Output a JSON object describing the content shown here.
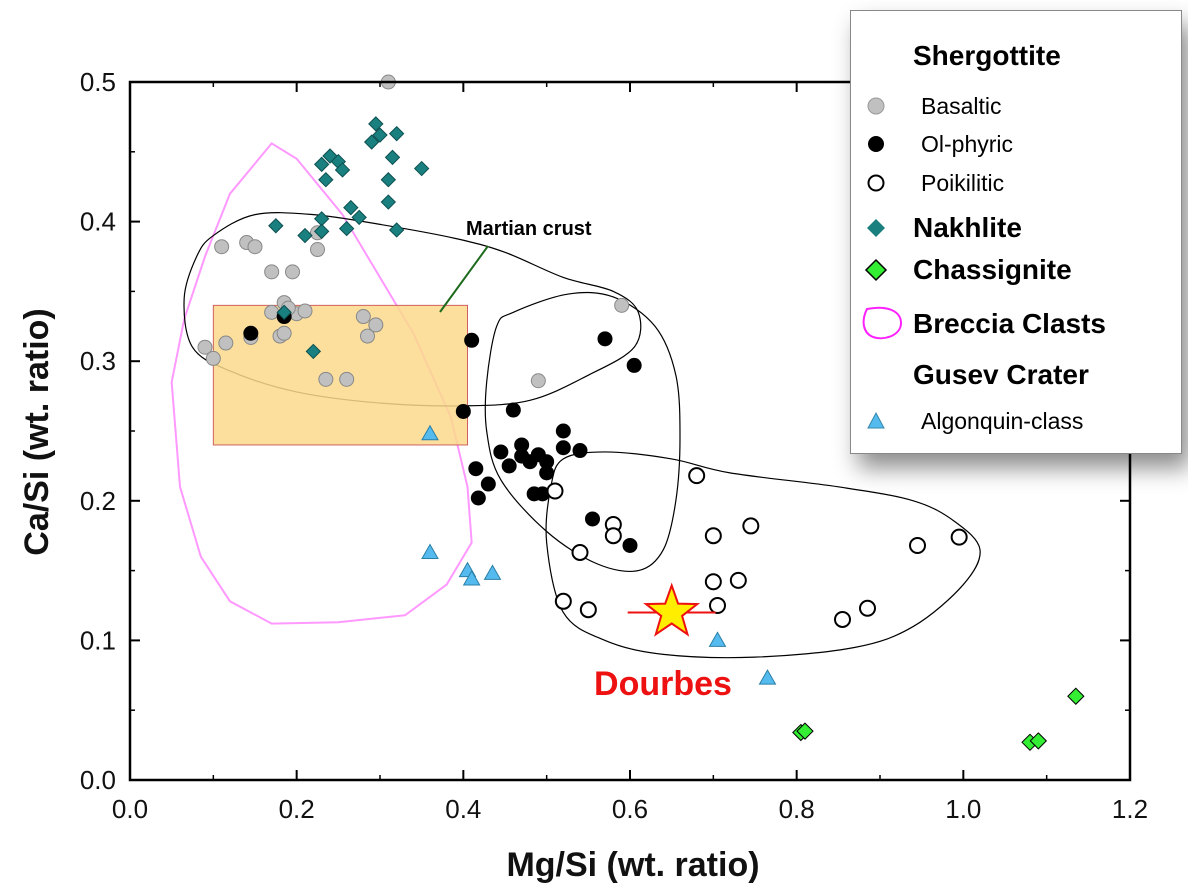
{
  "chart_data": {
    "type": "scatter",
    "xlabel": "Mg/Si (wt. ratio)",
    "ylabel": "Ca/Si (wt. ratio)",
    "xlim": [
      0.0,
      1.2
    ],
    "ylim": [
      0.0,
      0.5
    ],
    "x_ticks": [
      "0.0",
      "0.2",
      "0.4",
      "0.6",
      "0.8",
      "1.0",
      "1.2"
    ],
    "y_ticks": [
      "0.0",
      "0.1",
      "0.2",
      "0.3",
      "0.4",
      "0.5"
    ],
    "grid": false,
    "legend_position": "top-right",
    "annotations": {
      "crust_label": "Martian crust",
      "dourbes_label": "Dourbes",
      "dourbes_point": [
        0.65,
        0.12
      ],
      "crust_box": {
        "x": [
          0.1,
          0.405
        ],
        "y": [
          0.24,
          0.34
        ]
      }
    },
    "legend": {
      "group1": "Shergottite",
      "basaltic": "Basaltic",
      "olphyric": "Ol-phyric",
      "poikilitic": "Poikilitic",
      "nakhlite": "Nakhlite",
      "chassignite": "Chassignite",
      "breccia": "Breccia Clasts",
      "group2": "Gusev Crater",
      "algonquin": "Algonquin-class"
    },
    "series": [
      {
        "name": "Basaltic",
        "color": "#c0c0c0",
        "marker": "circle-filled",
        "points": [
          [
            0.31,
            0.5
          ],
          [
            0.11,
            0.382
          ],
          [
            0.14,
            0.385
          ],
          [
            0.15,
            0.382
          ],
          [
            0.17,
            0.364
          ],
          [
            0.195,
            0.364
          ],
          [
            0.225,
            0.38
          ],
          [
            0.225,
            0.392
          ],
          [
            0.09,
            0.31
          ],
          [
            0.1,
            0.302
          ],
          [
            0.115,
            0.313
          ],
          [
            0.145,
            0.317
          ],
          [
            0.17,
            0.335
          ],
          [
            0.185,
            0.342
          ],
          [
            0.18,
            0.318
          ],
          [
            0.185,
            0.32
          ],
          [
            0.2,
            0.334
          ],
          [
            0.21,
            0.336
          ],
          [
            0.235,
            0.287
          ],
          [
            0.26,
            0.287
          ],
          [
            0.28,
            0.332
          ],
          [
            0.285,
            0.318
          ],
          [
            0.295,
            0.326
          ],
          [
            0.49,
            0.286
          ],
          [
            0.59,
            0.34
          ],
          [
            0.185,
            0.333
          ],
          [
            0.19,
            0.338
          ]
        ]
      },
      {
        "name": "Ol-phyric",
        "color": "#000000",
        "marker": "circle-filled",
        "points": [
          [
            0.145,
            0.32
          ],
          [
            0.185,
            0.332
          ],
          [
            0.41,
            0.315
          ],
          [
            0.57,
            0.316
          ],
          [
            0.605,
            0.297
          ],
          [
            0.4,
            0.264
          ],
          [
            0.46,
            0.265
          ],
          [
            0.415,
            0.223
          ],
          [
            0.43,
            0.212
          ],
          [
            0.445,
            0.235
          ],
          [
            0.418,
            0.202
          ],
          [
            0.455,
            0.225
          ],
          [
            0.47,
            0.24
          ],
          [
            0.47,
            0.232
          ],
          [
            0.48,
            0.228
          ],
          [
            0.49,
            0.233
          ],
          [
            0.5,
            0.228
          ],
          [
            0.5,
            0.22
          ],
          [
            0.485,
            0.205
          ],
          [
            0.495,
            0.205
          ],
          [
            0.52,
            0.238
          ],
          [
            0.52,
            0.25
          ],
          [
            0.54,
            0.236
          ],
          [
            0.555,
            0.187
          ],
          [
            0.6,
            0.168
          ]
        ]
      },
      {
        "name": "Poikilitic",
        "color": "#000000",
        "marker": "circle-open",
        "points": [
          [
            0.51,
            0.207
          ],
          [
            0.58,
            0.183
          ],
          [
            0.58,
            0.175
          ],
          [
            0.54,
            0.163
          ],
          [
            0.52,
            0.128
          ],
          [
            0.55,
            0.122
          ],
          [
            0.68,
            0.218
          ],
          [
            0.7,
            0.175
          ],
          [
            0.745,
            0.182
          ],
          [
            0.7,
            0.142
          ],
          [
            0.705,
            0.125
          ],
          [
            0.73,
            0.143
          ],
          [
            0.855,
            0.115
          ],
          [
            0.885,
            0.123
          ],
          [
            0.945,
            0.168
          ],
          [
            0.995,
            0.174
          ]
        ]
      },
      {
        "name": "Nakhlite",
        "color": "#1a7f7f",
        "marker": "diamond",
        "points": [
          [
            0.295,
            0.47
          ],
          [
            0.3,
            0.462
          ],
          [
            0.32,
            0.463
          ],
          [
            0.29,
            0.457
          ],
          [
            0.24,
            0.447
          ],
          [
            0.25,
            0.443
          ],
          [
            0.23,
            0.441
          ],
          [
            0.255,
            0.437
          ],
          [
            0.315,
            0.446
          ],
          [
            0.35,
            0.438
          ],
          [
            0.235,
            0.43
          ],
          [
            0.31,
            0.43
          ],
          [
            0.265,
            0.41
          ],
          [
            0.31,
            0.414
          ],
          [
            0.275,
            0.403
          ],
          [
            0.23,
            0.402
          ],
          [
            0.175,
            0.397
          ],
          [
            0.23,
            0.393
          ],
          [
            0.26,
            0.395
          ],
          [
            0.32,
            0.394
          ],
          [
            0.21,
            0.39
          ],
          [
            0.185,
            0.335
          ],
          [
            0.22,
            0.307
          ]
        ]
      },
      {
        "name": "Chassignite",
        "color": "#33ee33",
        "marker": "diamond",
        "points": [
          [
            0.805,
            0.034
          ],
          [
            0.81,
            0.035
          ],
          [
            1.08,
            0.027
          ],
          [
            1.09,
            0.028
          ],
          [
            1.135,
            0.06
          ]
        ]
      },
      {
        "name": "Algonquin-class",
        "color": "#55bbee",
        "marker": "triangle",
        "points": [
          [
            0.36,
            0.248
          ],
          [
            0.36,
            0.163
          ],
          [
            0.405,
            0.15
          ],
          [
            0.41,
            0.144
          ],
          [
            0.435,
            0.148
          ],
          [
            0.705,
            0.1
          ],
          [
            0.765,
            0.073
          ]
        ]
      }
    ],
    "regions": [
      {
        "name": "Breccia Clasts",
        "color": "#ff99ff",
        "outline": [
          [
            0.17,
            0.456
          ],
          [
            0.12,
            0.42
          ],
          [
            0.09,
            0.375
          ],
          [
            0.065,
            0.33
          ],
          [
            0.05,
            0.285
          ],
          [
            0.06,
            0.21
          ],
          [
            0.085,
            0.16
          ],
          [
            0.12,
            0.128
          ],
          [
            0.17,
            0.112
          ],
          [
            0.25,
            0.113
          ],
          [
            0.33,
            0.118
          ],
          [
            0.38,
            0.14
          ],
          [
            0.41,
            0.17
          ],
          [
            0.405,
            0.21
          ],
          [
            0.385,
            0.26
          ],
          [
            0.34,
            0.32
          ],
          [
            0.3,
            0.36
          ],
          [
            0.255,
            0.405
          ],
          [
            0.2,
            0.445
          ],
          [
            0.17,
            0.456
          ]
        ]
      },
      {
        "name": "Shergottite Basaltic field",
        "outline": [
          [
            0.1,
            0.39
          ],
          [
            0.15,
            0.405
          ],
          [
            0.22,
            0.405
          ],
          [
            0.3,
            0.398
          ],
          [
            0.39,
            0.388
          ],
          [
            0.45,
            0.378
          ],
          [
            0.52,
            0.36
          ],
          [
            0.58,
            0.35
          ],
          [
            0.61,
            0.335
          ],
          [
            0.605,
            0.31
          ],
          [
            0.55,
            0.29
          ],
          [
            0.48,
            0.272
          ],
          [
            0.4,
            0.268
          ],
          [
            0.3,
            0.27
          ],
          [
            0.2,
            0.278
          ],
          [
            0.12,
            0.293
          ],
          [
            0.075,
            0.31
          ],
          [
            0.065,
            0.345
          ],
          [
            0.08,
            0.375
          ],
          [
            0.1,
            0.39
          ]
        ]
      },
      {
        "name": "Shergottite Ol-phyric field",
        "outline": [
          [
            0.44,
            0.325
          ],
          [
            0.46,
            0.335
          ],
          [
            0.525,
            0.348
          ],
          [
            0.58,
            0.346
          ],
          [
            0.63,
            0.325
          ],
          [
            0.655,
            0.29
          ],
          [
            0.66,
            0.245
          ],
          [
            0.655,
            0.2
          ],
          [
            0.64,
            0.165
          ],
          [
            0.61,
            0.15
          ],
          [
            0.56,
            0.155
          ],
          [
            0.5,
            0.178
          ],
          [
            0.445,
            0.215
          ],
          [
            0.428,
            0.25
          ],
          [
            0.428,
            0.285
          ],
          [
            0.44,
            0.325
          ]
        ]
      },
      {
        "name": "Shergottite Poikilitic field",
        "outline": [
          [
            0.52,
            0.23
          ],
          [
            0.57,
            0.235
          ],
          [
            0.65,
            0.23
          ],
          [
            0.72,
            0.22
          ],
          [
            0.85,
            0.21
          ],
          [
            0.94,
            0.2
          ],
          [
            0.99,
            0.185
          ],
          [
            1.02,
            0.165
          ],
          [
            1.0,
            0.14
          ],
          [
            0.94,
            0.11
          ],
          [
            0.87,
            0.095
          ],
          [
            0.75,
            0.088
          ],
          [
            0.64,
            0.09
          ],
          [
            0.57,
            0.1
          ],
          [
            0.52,
            0.12
          ],
          [
            0.5,
            0.17
          ],
          [
            0.505,
            0.21
          ],
          [
            0.52,
            0.23
          ]
        ]
      }
    ]
  }
}
